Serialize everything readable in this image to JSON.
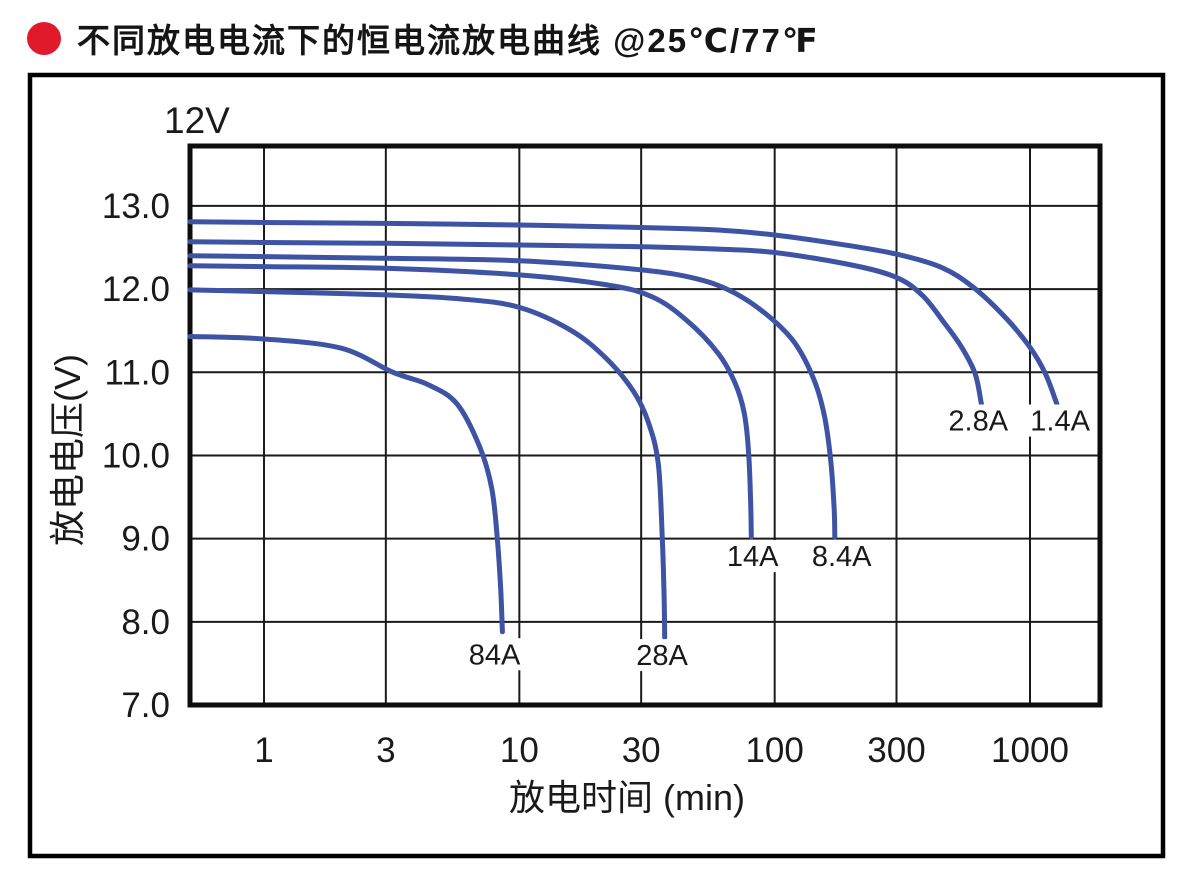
{
  "header": {
    "title": "不同放电电流下的恒电流放电曲线 @25℃/77℉",
    "bullet_color": "#e11a2b"
  },
  "chart_data": {
    "type": "line",
    "title": "不同放电电流下的恒电流放电曲线 @25℃/77℉",
    "badge": "12V",
    "grid": true,
    "legend_position": "inline-labels",
    "line_color": "#3e53a4",
    "grid_color": "#1a1a1a",
    "x_axis": {
      "label": "放电时间 (min)",
      "scale": "log",
      "ticks": [
        1,
        3,
        10,
        30,
        100,
        300,
        1000
      ],
      "tick_labels": [
        "1",
        "3",
        "10",
        "30",
        "100",
        "300",
        "1000"
      ],
      "range": [
        0.513,
        1880
      ]
    },
    "y_axis": {
      "label": "放电电压(V)",
      "scale": "linear",
      "ticks": [
        13,
        12,
        11,
        10,
        9,
        8,
        7
      ],
      "tick_labels": [
        "13.0",
        "12.0",
        "11.0",
        "10.0",
        "9.0",
        "8.0",
        "7.0"
      ],
      "range": [
        7.0,
        13.72
      ]
    },
    "series": [
      {
        "name": "84A",
        "label": "84A",
        "label_at": {
          "t": 8.0,
          "v": 7.61
        },
        "points": [
          [
            0.513,
            11.43
          ],
          [
            1,
            11.4
          ],
          [
            2,
            11.29
          ],
          [
            3.2,
            11.0
          ],
          [
            4.4,
            10.85
          ],
          [
            5.7,
            10.62
          ],
          [
            7.0,
            10.1
          ],
          [
            7.8,
            9.6
          ],
          [
            8.2,
            9.0
          ],
          [
            8.45,
            8.4
          ],
          [
            8.58,
            7.88
          ]
        ]
      },
      {
        "name": "28A",
        "label": "28A",
        "label_at": {
          "t": 36.2,
          "v": 7.6
        },
        "points": [
          [
            0.513,
            11.99
          ],
          [
            1,
            11.97
          ],
          [
            3,
            11.93
          ],
          [
            6,
            11.88
          ],
          [
            10,
            11.78
          ],
          [
            16,
            11.5
          ],
          [
            22,
            11.16
          ],
          [
            28,
            10.77
          ],
          [
            32,
            10.4
          ],
          [
            35,
            9.9
          ],
          [
            36.3,
            9.0
          ],
          [
            36.9,
            8.3
          ],
          [
            37.1,
            7.81
          ]
        ]
      },
      {
        "name": "14A",
        "label": "14A",
        "label_at": {
          "t": 82,
          "v": 8.79
        },
        "points": [
          [
            0.513,
            12.28
          ],
          [
            1,
            12.27
          ],
          [
            3,
            12.25
          ],
          [
            10,
            12.17
          ],
          [
            22,
            12.05
          ],
          [
            33,
            11.91
          ],
          [
            45,
            11.63
          ],
          [
            60,
            11.23
          ],
          [
            70,
            10.87
          ],
          [
            76,
            10.51
          ],
          [
            79,
            10.05
          ],
          [
            80.5,
            9.45
          ],
          [
            81,
            9.02
          ]
        ]
      },
      {
        "name": "8.4A",
        "label": "8.4A",
        "label_at": {
          "t": 183,
          "v": 8.79
        },
        "points": [
          [
            0.513,
            12.4
          ],
          [
            1,
            12.39
          ],
          [
            3,
            12.37
          ],
          [
            10,
            12.34
          ],
          [
            30,
            12.23
          ],
          [
            50,
            12.12
          ],
          [
            70,
            11.95
          ],
          [
            95,
            11.67
          ],
          [
            120,
            11.35
          ],
          [
            143,
            10.9
          ],
          [
            157,
            10.46
          ],
          [
            166,
            9.92
          ],
          [
            171,
            9.35
          ],
          [
            172,
            9.02
          ]
        ]
      },
      {
        "name": "2.8A",
        "label": "2.8A",
        "label_at": {
          "t": 627,
          "v": 10.42
        },
        "points": [
          [
            0.513,
            12.57
          ],
          [
            1,
            12.56
          ],
          [
            3,
            12.55
          ],
          [
            10,
            12.53
          ],
          [
            30,
            12.51
          ],
          [
            60,
            12.48
          ],
          [
            100,
            12.44
          ],
          [
            200,
            12.29
          ],
          [
            300,
            12.14
          ],
          [
            380,
            11.92
          ],
          [
            460,
            11.6
          ],
          [
            540,
            11.3
          ],
          [
            610,
            10.98
          ],
          [
            645,
            10.62
          ]
        ]
      },
      {
        "name": "1.4A",
        "label": "1.4A",
        "label_at": {
          "t": 1312,
          "v": 10.42
        },
        "points": [
          [
            0.513,
            12.81
          ],
          [
            1,
            12.8
          ],
          [
            3,
            12.79
          ],
          [
            10,
            12.77
          ],
          [
            30,
            12.74
          ],
          [
            60,
            12.71
          ],
          [
            100,
            12.65
          ],
          [
            180,
            12.54
          ],
          [
            300,
            12.42
          ],
          [
            450,
            12.26
          ],
          [
            600,
            12.02
          ],
          [
            800,
            11.66
          ],
          [
            1000,
            11.3
          ],
          [
            1150,
            10.98
          ],
          [
            1280,
            10.6
          ]
        ]
      }
    ]
  }
}
